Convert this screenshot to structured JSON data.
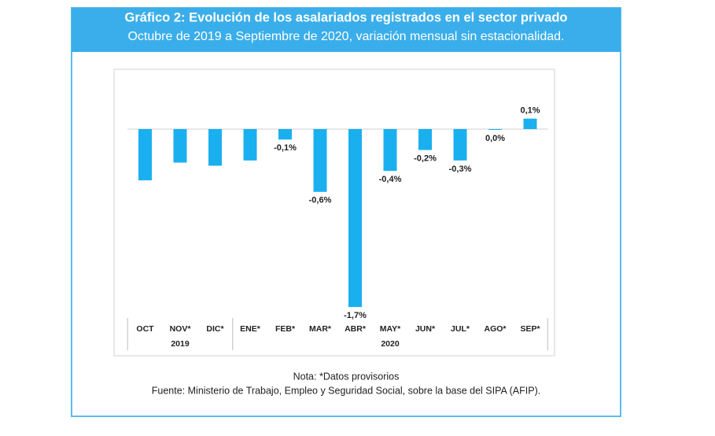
{
  "chart_data": {
    "type": "bar",
    "title": "Gráfico 2: Evolución de los asalariados registrados en el sector privado",
    "subtitle": "Octubre de 2019 a Septiembre de 2020, variación mensual sin estacionalidad.",
    "categories": [
      "OCT",
      "NOV*",
      "DIC*",
      "ENE*",
      "FEB*",
      "MAR*",
      "ABR*",
      "MAY*",
      "JUN*",
      "JUL*",
      "AGO*",
      "SEP*"
    ],
    "groups": [
      "2019",
      "2020"
    ],
    "values": [
      -0.49,
      -0.32,
      -0.35,
      -0.3,
      -0.1,
      -0.6,
      -1.7,
      -0.4,
      -0.2,
      -0.3,
      0.0,
      0.1
    ],
    "value_labels": [
      null,
      null,
      null,
      null,
      "-0,1%",
      "-0,6%",
      "-1,7%",
      "-0,4%",
      "-0,2%",
      "-0,3%",
      "0,0%",
      "0,1%"
    ],
    "color": "#1ab0ef",
    "notes": [
      "Nota: *Datos provisorios",
      "Fuente: Ministerio de Trabajo, Empleo y Seguridad Social, sobre la base del SIPA (AFIP)."
    ]
  }
}
